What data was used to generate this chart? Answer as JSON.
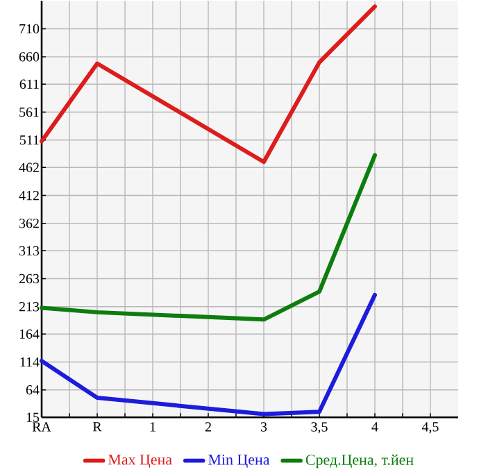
{
  "chart_data": {
    "type": "line",
    "categories": [
      "RA",
      "R",
      "1",
      "2",
      "3",
      "3,5",
      "4",
      "4,5"
    ],
    "series": [
      {
        "name": "Max Цена",
        "color": "#dd1c1c",
        "values": [
          509,
          648,
          null,
          null,
          472,
          650,
          750,
          null
        ]
      },
      {
        "name": "Min Цена",
        "color": "#1c1cdd",
        "values": [
          116,
          50,
          null,
          null,
          21,
          25,
          234,
          null
        ]
      },
      {
        "name": "Сред.Цена, т.йен",
        "color": "#0d7d0d",
        "values": [
          211,
          203,
          null,
          null,
          190,
          240,
          484,
          null
        ]
      }
    ],
    "ylim": [
      15,
      760
    ],
    "yticks": [
      15,
      64,
      114,
      164,
      213,
      263,
      313,
      362,
      412,
      462,
      511,
      561,
      611,
      660,
      710
    ],
    "grid": true,
    "legend": "bottom",
    "marker": "none",
    "line_style": "solid"
  }
}
